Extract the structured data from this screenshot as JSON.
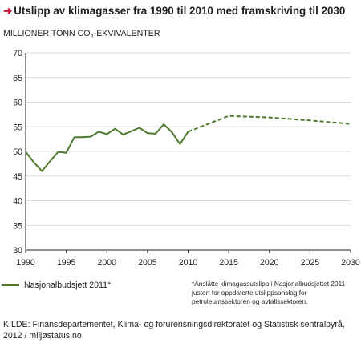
{
  "title": "Utslipp av klimagasser fra 1990 til 2010 med framskriving til 2030",
  "ylabel_main": "MILLIONER TONN CO",
  "ylabel_sub": "2",
  "ylabel_tail": "-EKVIVALENTER",
  "legend_label": "Nasjonalbudsjett 2011*",
  "footnote": "*Anslåtte klimagassutslipp i Nasjonalbudsjettet 2011 justert for oppdaterte utslippsanslag for petroleumssektoren og avfallssektoren.",
  "source": "KILDE: Finansdepartementet, Klima- og forurensningsdirektoratet og Statistisk sentralbyrå, 2012 / miljøstatus.no",
  "colors": {
    "line": "#4f7a2e",
    "accent_arrow": "#c8102e",
    "grid": "#d9d9d9"
  },
  "chart_data": {
    "type": "line",
    "title": "Utslipp av klimagasser fra 1990 til 2010 med framskriving til 2030",
    "ylabel": "MILLIONER TONN CO2-EKVIVALENTER",
    "xlim": [
      1990,
      2030
    ],
    "ylim": [
      30,
      70
    ],
    "xticks": [
      1990,
      1995,
      2000,
      2005,
      2010,
      2015,
      2020,
      2025,
      2030
    ],
    "yticks": [
      30,
      35,
      40,
      45,
      50,
      55,
      60,
      65,
      70
    ],
    "grid": true,
    "series": [
      {
        "name": "Nasjonalbudsjett 2011*",
        "style": "solid",
        "x": [
          1990,
          1991,
          1992,
          1993,
          1994,
          1995,
          1996,
          1997,
          1998,
          1999,
          2000,
          2001,
          2002,
          2003,
          2004,
          2005,
          2006,
          2007,
          2008,
          2009,
          2010
        ],
        "y": [
          49.9,
          47.8,
          46.0,
          48.0,
          49.9,
          49.7,
          52.9,
          52.9,
          53.0,
          54.0,
          53.5,
          54.6,
          53.4,
          54.1,
          54.8,
          53.7,
          53.6,
          55.5,
          53.9,
          51.5,
          54.0
        ]
      },
      {
        "name": "",
        "style": "dashed",
        "x": [
          2010,
          2015,
          2020,
          2025,
          2030
        ],
        "y": [
          54.0,
          57.2,
          56.9,
          56.3,
          55.6
        ]
      }
    ]
  }
}
